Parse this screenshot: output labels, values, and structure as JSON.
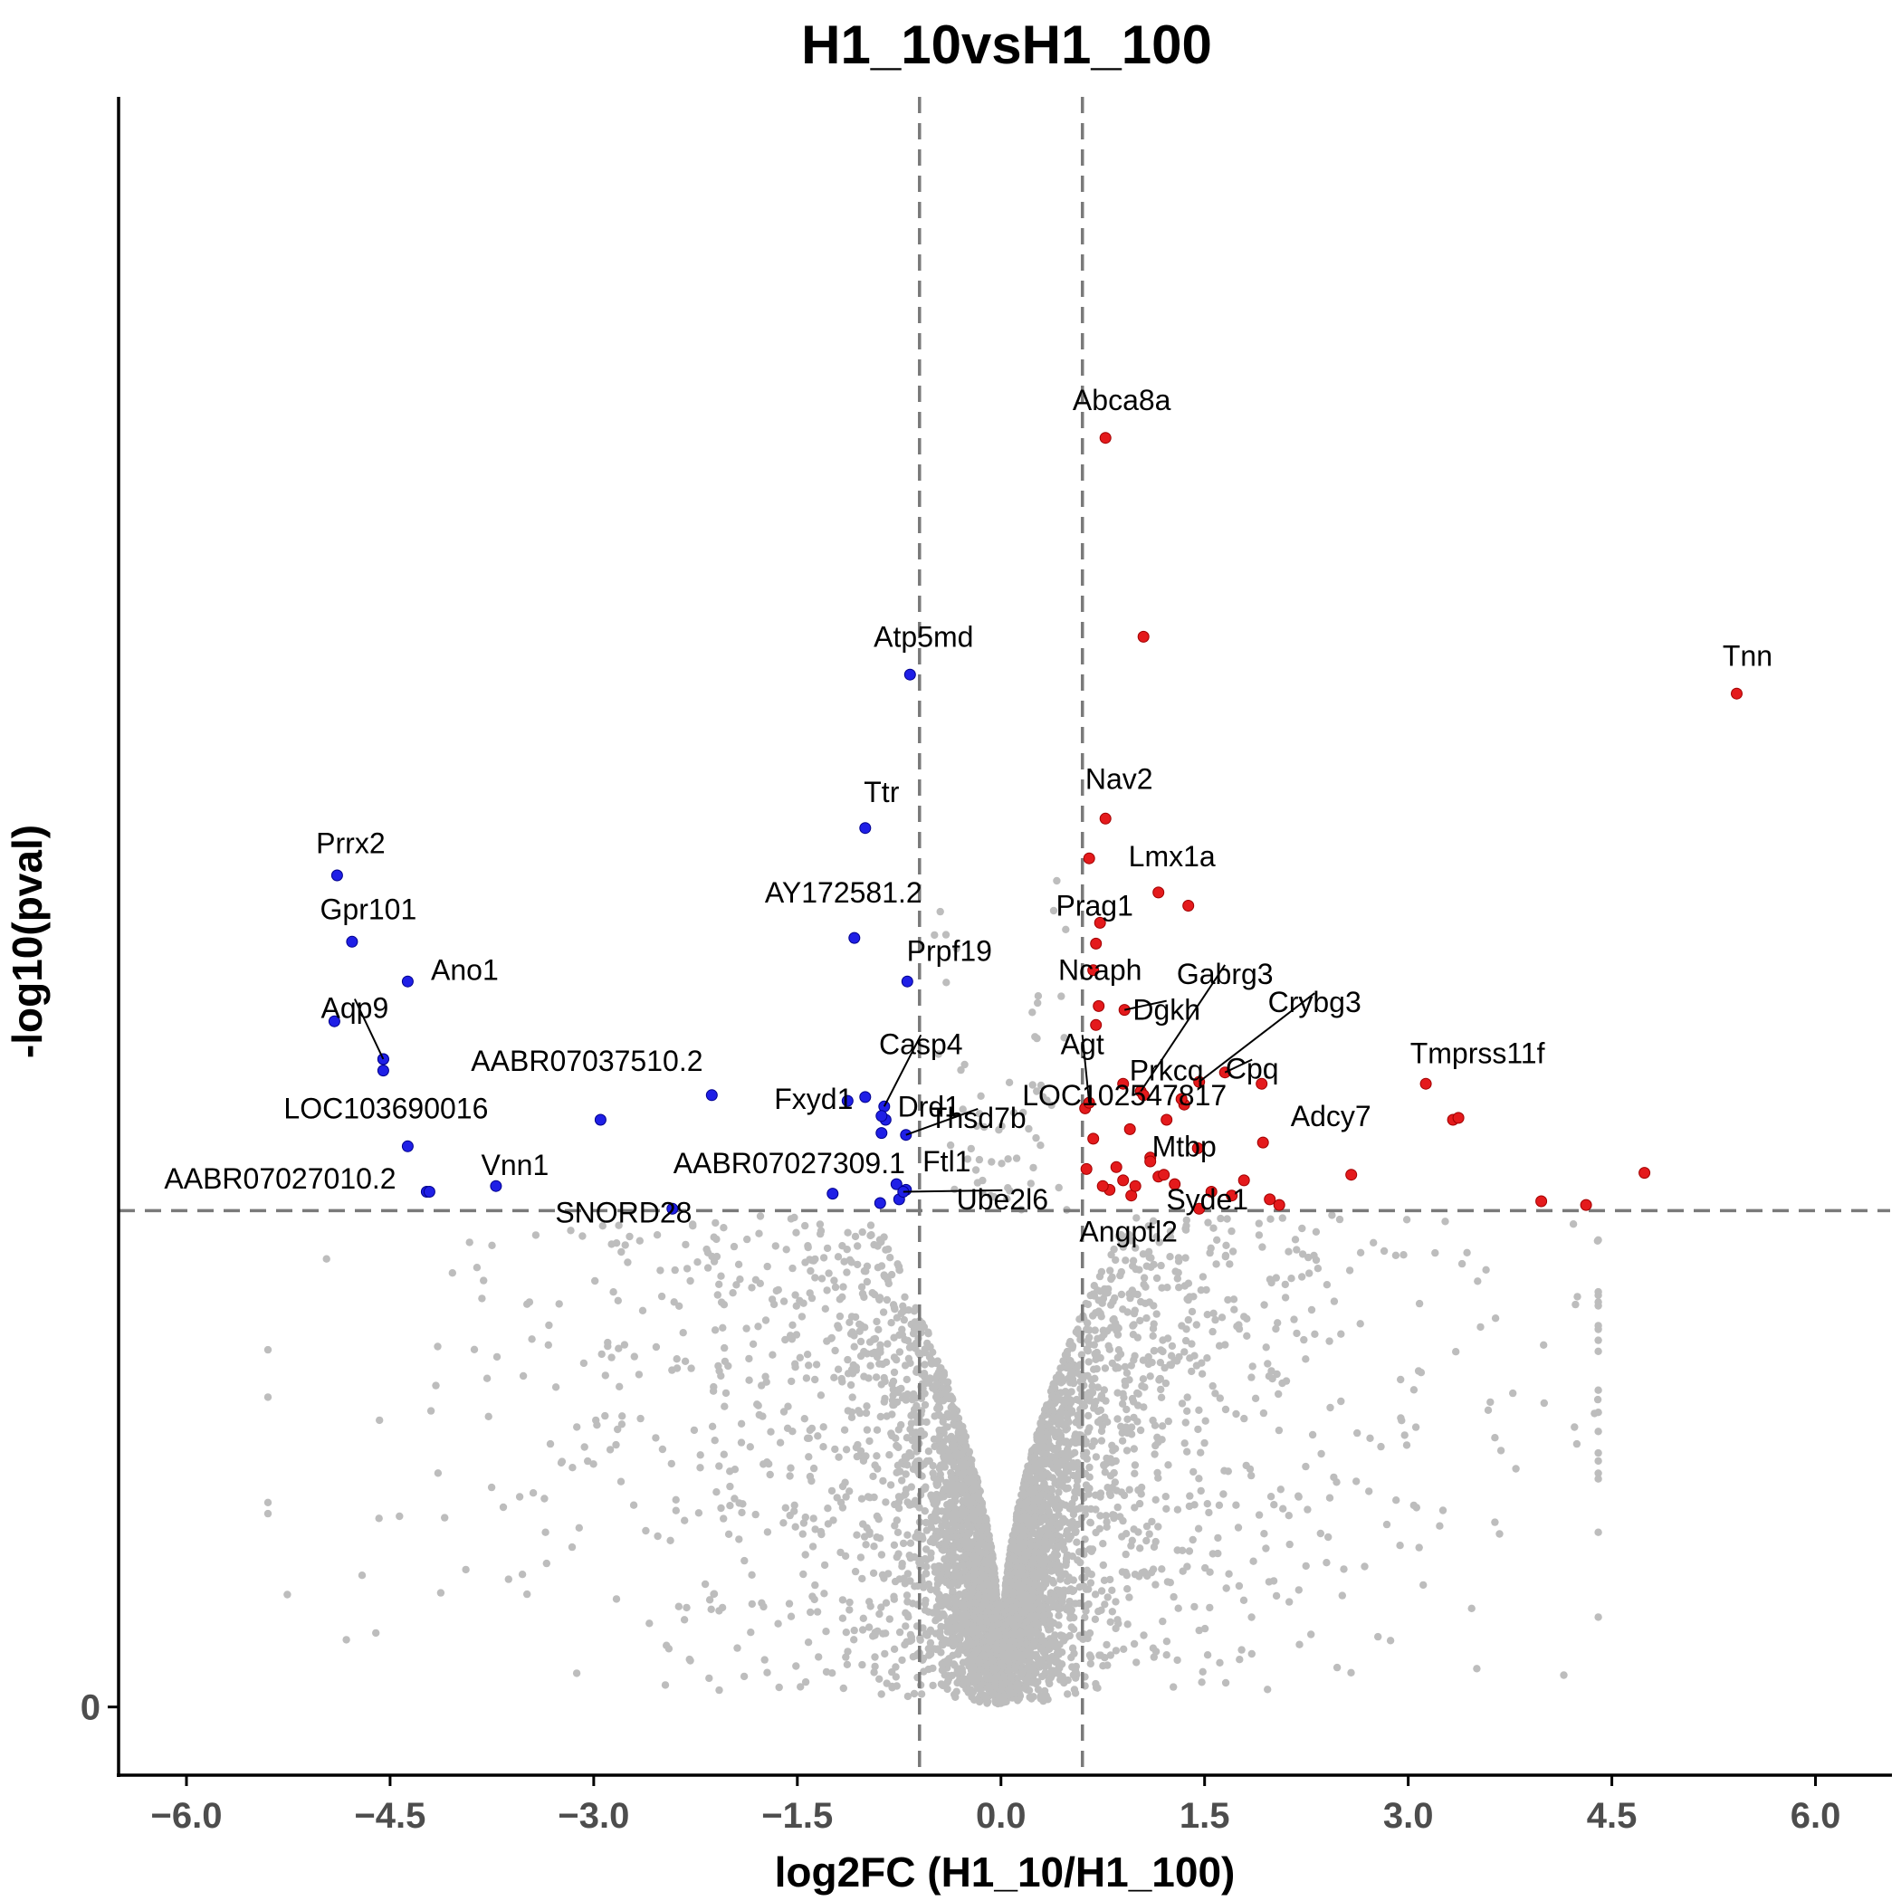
{
  "chart_data": {
    "type": "scatter",
    "title": "H1_10vsH1_100",
    "xlabel": "log2FC (H1_10/H1_100)",
    "ylabel": "-log10(pval)",
    "xlim": [
      -6.5,
      6.55
    ],
    "ylim": [
      -0.36,
      8.5
    ],
    "x_ticks": [
      -6.0,
      -4.5,
      -3.0,
      -1.5,
      0.0,
      1.5,
      3.0,
      4.5,
      6.0
    ],
    "x_tick_labels": [
      "−6.0",
      "−4.5",
      "−3.0",
      "−1.5",
      "0.0",
      "1.5",
      "3.0",
      "4.5",
      "6.0"
    ],
    "y_ticks": [
      0
    ],
    "y_tick_labels": [
      "0"
    ],
    "thresholds": {
      "log2fc": [
        -0.6,
        0.6
      ],
      "neg_log10_pval": 2.62
    },
    "grid": false,
    "colors": {
      "up": "#e41a1c",
      "down": "#1f1fe6",
      "ns": "#bdbdbd",
      "threshold": "#7a7a7a"
    },
    "ns_count": 5200,
    "labeled_genes": [
      {
        "gene": "Abca8a",
        "x": 0.77,
        "y": 6.7,
        "group": "up",
        "label_dx": 0.12,
        "label_dy": 0.2,
        "leader": false
      },
      {
        "gene": "Tnn",
        "x": 5.42,
        "y": 5.35,
        "group": "up",
        "label_dx": 0.08,
        "label_dy": 0.2,
        "leader": false
      },
      {
        "gene": "Nav2",
        "x": 0.77,
        "y": 4.69,
        "group": "up",
        "label_dx": 0.1,
        "label_dy": 0.21,
        "leader": false
      },
      {
        "gene": "Lmx1a",
        "x": 1.16,
        "y": 4.3,
        "group": "up",
        "label_dx": 0.1,
        "label_dy": 0.19,
        "leader": false
      },
      {
        "gene": "Prag1",
        "x": 0.73,
        "y": 4.14,
        "group": "up",
        "label_dx": -0.04,
        "label_dy": 0.09,
        "leader": false
      },
      {
        "gene": "Ncaph",
        "x": 0.68,
        "y": 3.89,
        "group": "up",
        "label_dx": 0.05,
        "label_dy": 0.0,
        "leader": false
      },
      {
        "gene": "Gabrg3",
        "x": 1.03,
        "y": 3.25,
        "group": "up",
        "label_dx": 0.62,
        "label_dy": 0.62,
        "leader": true
      },
      {
        "gene": "Dgkh",
        "x": 0.91,
        "y": 3.68,
        "group": "up",
        "label_dx": 0.31,
        "label_dy": 0.0,
        "leader": true
      },
      {
        "gene": "Crybg3",
        "x": 1.46,
        "y": 3.3,
        "group": "up",
        "label_dx": 0.85,
        "label_dy": 0.42,
        "leader": true
      },
      {
        "gene": "Agt",
        "x": 0.65,
        "y": 3.19,
        "group": "up",
        "label_dx": -0.05,
        "label_dy": 0.31,
        "leader": true
      },
      {
        "gene": "Prkcq",
        "x": 1.33,
        "y": 3.21,
        "group": "up",
        "label_dx": -0.11,
        "label_dy": 0.15,
        "leader": false
      },
      {
        "gene": "Cpq",
        "x": 1.65,
        "y": 3.35,
        "group": "up",
        "label_dx": 0.2,
        "label_dy": 0.02,
        "leader": true
      },
      {
        "gene": "LOC102547817",
        "x": 1.05,
        "y": 3.23,
        "group": "up",
        "label_dx": -0.14,
        "label_dy": 0.0,
        "leader": false
      },
      {
        "gene": "Tmprss11f",
        "x": 3.13,
        "y": 3.29,
        "group": "up",
        "label_dx": 0.38,
        "label_dy": 0.16,
        "leader": false
      },
      {
        "gene": "Adcy7",
        "x": 1.93,
        "y": 2.98,
        "group": "up",
        "label_dx": 0.5,
        "label_dy": 0.14,
        "leader": false
      },
      {
        "gene": "Mtbp",
        "x": 1.1,
        "y": 2.88,
        "group": "up",
        "label_dx": 0.25,
        "label_dy": 0.08,
        "leader": false
      },
      {
        "gene": "Syde1",
        "x": 1.46,
        "y": 2.63,
        "group": "up",
        "label_dx": 0.06,
        "label_dy": 0.05,
        "leader": false
      },
      {
        "gene": "Angptl2",
        "x": 0.99,
        "y": 2.75,
        "group": "up",
        "label_dx": -0.05,
        "label_dy": -0.24,
        "leader": false
      },
      {
        "gene": "Atp5md",
        "x": -0.67,
        "y": 5.45,
        "group": "down",
        "label_dx": 0.1,
        "label_dy": 0.2,
        "leader": false
      },
      {
        "gene": "Ttr",
        "x": -1.0,
        "y": 4.64,
        "group": "down",
        "label_dx": 0.12,
        "label_dy": 0.19,
        "leader": false
      },
      {
        "gene": "Prrx2",
        "x": -4.89,
        "y": 4.39,
        "group": "down",
        "label_dx": 0.1,
        "label_dy": 0.17,
        "leader": false
      },
      {
        "gene": "Gpr101",
        "x": -4.78,
        "y": 4.04,
        "group": "down",
        "label_dx": 0.12,
        "label_dy": 0.17,
        "leader": false
      },
      {
        "gene": "AY172581.2",
        "x": -1.08,
        "y": 4.06,
        "group": "down",
        "label_dx": -0.08,
        "label_dy": 0.24,
        "leader": false
      },
      {
        "gene": "Prpf19",
        "x": -0.69,
        "y": 3.83,
        "group": "down",
        "label_dx": 0.31,
        "label_dy": 0.16,
        "leader": false
      },
      {
        "gene": "Ano1",
        "x": -4.37,
        "y": 3.83,
        "group": "down",
        "label_dx": 0.42,
        "label_dy": 0.06,
        "leader": false
      },
      {
        "gene": "Aqp9",
        "x": -4.55,
        "y": 3.42,
        "group": "down",
        "label_dx": -0.21,
        "label_dy": 0.27,
        "leader": true
      },
      {
        "gene": "AABR07037510.2",
        "x": -4.55,
        "y": 3.36,
        "group": "down",
        "label_dx": 1.5,
        "label_dy": 0.05,
        "leader": false
      },
      {
        "gene": "Casp4",
        "x": -0.86,
        "y": 3.17,
        "group": "down",
        "label_dx": 0.27,
        "label_dy": 0.33,
        "leader": true
      },
      {
        "gene": "Fxyd1",
        "x": -1.13,
        "y": 3.2,
        "group": "down",
        "label_dx": -0.25,
        "label_dy": 0.01,
        "leader": false
      },
      {
        "gene": "Drd1",
        "x": -0.88,
        "y": 3.12,
        "group": "down",
        "label_dx": 0.35,
        "label_dy": 0.05,
        "leader": false
      },
      {
        "gene": "Thsd7b",
        "x": -0.7,
        "y": 3.02,
        "group": "down",
        "label_dx": 0.53,
        "label_dy": 0.09,
        "leader": true
      },
      {
        "gene": "LOC103690016",
        "x": -2.95,
        "y": 3.1,
        "group": "down",
        "label_dx": -1.58,
        "label_dy": 0.06,
        "leader": false
      },
      {
        "gene": "AABR07027309.1",
        "x": -0.88,
        "y": 3.03,
        "group": "down",
        "label_dx": -0.68,
        "label_dy": -0.16,
        "leader": false
      },
      {
        "gene": "Vnn1",
        "x": -3.72,
        "y": 2.75,
        "group": "down",
        "label_dx": 0.14,
        "label_dy": 0.11,
        "leader": false
      },
      {
        "gene": "AABR07027010.2",
        "x": -4.21,
        "y": 2.72,
        "group": "down",
        "label_dx": -1.1,
        "label_dy": 0.07,
        "leader": false
      },
      {
        "gene": "Ftl1",
        "x": -0.77,
        "y": 2.76,
        "group": "down",
        "label_dx": 0.37,
        "label_dy": 0.12,
        "leader": false
      },
      {
        "gene": "SNORD28",
        "x": -2.42,
        "y": 2.63,
        "group": "down",
        "label_dx": -0.36,
        "label_dy": -0.02,
        "leader": false
      },
      {
        "gene": "Ube2l6",
        "x": -0.72,
        "y": 2.72,
        "group": "down",
        "label_dx": 0.73,
        "label_dy": -0.04,
        "leader": true
      }
    ],
    "unlabeled_significant": [
      {
        "x": 1.05,
        "y": 5.65,
        "group": "up"
      },
      {
        "x": 0.65,
        "y": 4.48,
        "group": "up"
      },
      {
        "x": 1.38,
        "y": 4.23,
        "group": "up"
      },
      {
        "x": 0.7,
        "y": 4.03,
        "group": "up"
      },
      {
        "x": 0.72,
        "y": 3.7,
        "group": "up"
      },
      {
        "x": 0.9,
        "y": 3.29,
        "group": "up"
      },
      {
        "x": 0.62,
        "y": 3.16,
        "group": "up"
      },
      {
        "x": 3.33,
        "y": 3.1,
        "group": "up"
      },
      {
        "x": 3.37,
        "y": 3.11,
        "group": "up"
      },
      {
        "x": 1.22,
        "y": 3.1,
        "group": "up"
      },
      {
        "x": 1.92,
        "y": 3.29,
        "group": "up"
      },
      {
        "x": 0.63,
        "y": 2.84,
        "group": "up"
      },
      {
        "x": 0.8,
        "y": 2.73,
        "group": "up"
      },
      {
        "x": 0.9,
        "y": 2.78,
        "group": "up"
      },
      {
        "x": 1.16,
        "y": 2.8,
        "group": "up"
      },
      {
        "x": 1.28,
        "y": 2.76,
        "group": "up"
      },
      {
        "x": 1.79,
        "y": 2.78,
        "group": "up"
      },
      {
        "x": 2.58,
        "y": 2.81,
        "group": "up"
      },
      {
        "x": 4.74,
        "y": 2.82,
        "group": "up"
      },
      {
        "x": 3.98,
        "y": 2.67,
        "group": "up"
      },
      {
        "x": 4.31,
        "y": 2.65,
        "group": "up"
      },
      {
        "x": 1.98,
        "y": 2.68,
        "group": "up"
      },
      {
        "x": 0.75,
        "y": 2.75,
        "group": "up"
      },
      {
        "x": 0.96,
        "y": 2.7,
        "group": "up"
      },
      {
        "x": 1.2,
        "y": 2.81,
        "group": "up"
      },
      {
        "x": 1.55,
        "y": 2.72,
        "group": "up"
      },
      {
        "x": 0.85,
        "y": 2.85,
        "group": "up"
      },
      {
        "x": 1.1,
        "y": 2.9,
        "group": "up"
      },
      {
        "x": 1.45,
        "y": 2.95,
        "group": "up"
      },
      {
        "x": 0.68,
        "y": 3.0,
        "group": "up"
      },
      {
        "x": 0.95,
        "y": 3.05,
        "group": "up"
      },
      {
        "x": 1.35,
        "y": 3.18,
        "group": "up"
      },
      {
        "x": 0.7,
        "y": 3.6,
        "group": "up"
      },
      {
        "x": 1.7,
        "y": 2.7,
        "group": "up"
      },
      {
        "x": 2.05,
        "y": 2.65,
        "group": "up"
      },
      {
        "x": -4.55,
        "y": 3.42,
        "group": "down"
      },
      {
        "x": -4.91,
        "y": 3.62,
        "group": "down"
      },
      {
        "x": -4.37,
        "y": 2.96,
        "group": "down"
      },
      {
        "x": -4.23,
        "y": 2.72,
        "group": "down"
      },
      {
        "x": -2.13,
        "y": 3.23,
        "group": "down"
      },
      {
        "x": -1.24,
        "y": 2.71,
        "group": "down"
      },
      {
        "x": -0.89,
        "y": 2.66,
        "group": "down"
      },
      {
        "x": -0.75,
        "y": 2.68,
        "group": "down"
      },
      {
        "x": -0.7,
        "y": 2.73,
        "group": "down"
      },
      {
        "x": -0.85,
        "y": 3.1,
        "group": "down"
      },
      {
        "x": -1.0,
        "y": 3.22,
        "group": "down"
      }
    ]
  }
}
